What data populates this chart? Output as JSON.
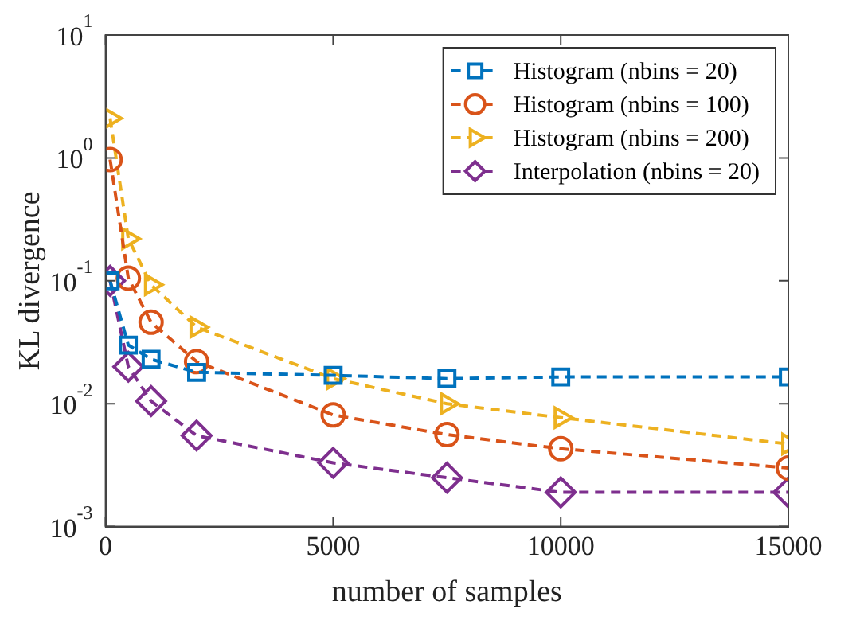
{
  "chart_data": {
    "type": "line",
    "xlabel": "number of samples",
    "ylabel": "KL divergence",
    "log": "y",
    "xlim": [
      0,
      15000
    ],
    "xticks": [
      0,
      5000,
      10000,
      15000
    ],
    "ylim": [
      0.001,
      10
    ],
    "yticks": [
      {
        "value": 0.001,
        "label": "10$^{-3}$"
      },
      {
        "value": 0.01,
        "label": "10$^{-2}$"
      },
      {
        "value": 0.1,
        "label": "10$^{-1}$"
      },
      {
        "value": 1,
        "label": "10$^{0}$"
      },
      {
        "value": 10,
        "label": "10$^{1}$"
      }
    ],
    "grid": false,
    "legend": "top right",
    "line_style": "dashed",
    "x": [
      100,
      500,
      1000,
      2000,
      5000,
      7500,
      10000,
      15000
    ],
    "series": [
      {
        "name": "Histogram (nbins = 20)",
        "color": "#0072bd",
        "marker": "square",
        "values": [
          0.1,
          0.03,
          0.023,
          0.018,
          0.017,
          0.016,
          0.0165,
          0.0165
        ]
      },
      {
        "name": "Histogram (nbins = 100)",
        "color": "#d95319",
        "marker": "circle",
        "values": [
          0.97,
          0.105,
          0.046,
          0.022,
          0.0081,
          0.0056,
          0.0043,
          0.003
        ]
      },
      {
        "name": "Histogram (nbins = 200)",
        "color": "#edb120",
        "marker": "triangle",
        "values": [
          2.1,
          0.22,
          0.093,
          0.042,
          0.016,
          0.01,
          0.0077,
          0.0047
        ]
      },
      {
        "name": "Interpolation (nbins = 20)",
        "color": "#7e2f8e",
        "marker": "diamond",
        "values": [
          0.1,
          0.02,
          0.0105,
          0.0055,
          0.0033,
          0.0025,
          0.0019,
          0.0019
        ]
      }
    ]
  }
}
